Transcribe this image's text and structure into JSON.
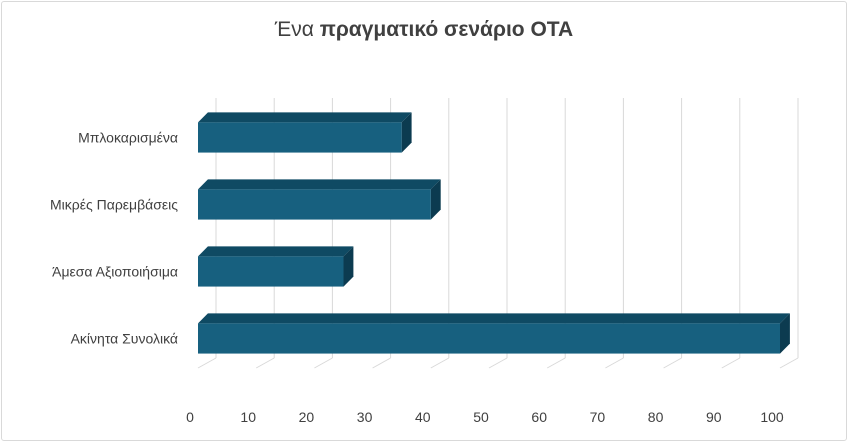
{
  "chart_data": {
    "type": "bar",
    "orientation": "horizontal",
    "style": "3d",
    "title_parts": [
      "Ένα ",
      "πραγματικό σενάριο ΟΤΑ"
    ],
    "title": "Ένα πραγματικό σενάριο ΟΤΑ",
    "categories": [
      "Μπλοκαρισμένα",
      "Μικρές Παρεμβάσεις",
      "Άμεσα Αξιοποιήσιμα",
      "Ακίνητα Συνολικά"
    ],
    "values": [
      35,
      40,
      25,
      100
    ],
    "xlim": [
      0,
      100
    ],
    "xticks": [
      "0",
      "10",
      "20",
      "30",
      "40",
      "50",
      "60",
      "70",
      "80",
      "90",
      "100"
    ],
    "grid": true,
    "legend": "none",
    "colors": {
      "bar_front": "#17607f",
      "bar_top": "#0f4a63",
      "bar_side": "#0c3b50",
      "grid": "#d9d9d9",
      "text": "#404040"
    }
  }
}
